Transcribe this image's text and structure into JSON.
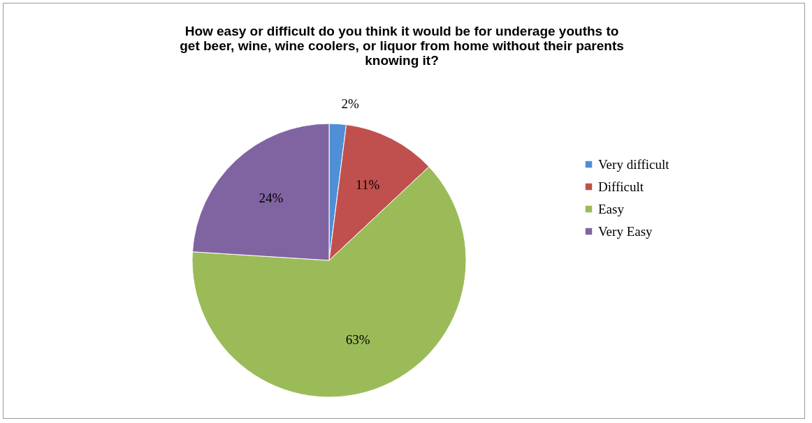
{
  "chart_data": {
    "type": "pie",
    "title": "How easy or difficult do you think it would be for underage youths to get beer, wine, wine coolers, or liquor from home without their parents knowing it?",
    "categories": [
      "Very difficult",
      "Difficult",
      "Easy",
      "Very Easy"
    ],
    "values": [
      2,
      11,
      63,
      24
    ],
    "colors": [
      "#4f8fd6",
      "#c0504d",
      "#9bbb59",
      "#8064a2"
    ],
    "value_labels": [
      "2%",
      "11%",
      "63%",
      "24%"
    ],
    "legend": "right"
  }
}
